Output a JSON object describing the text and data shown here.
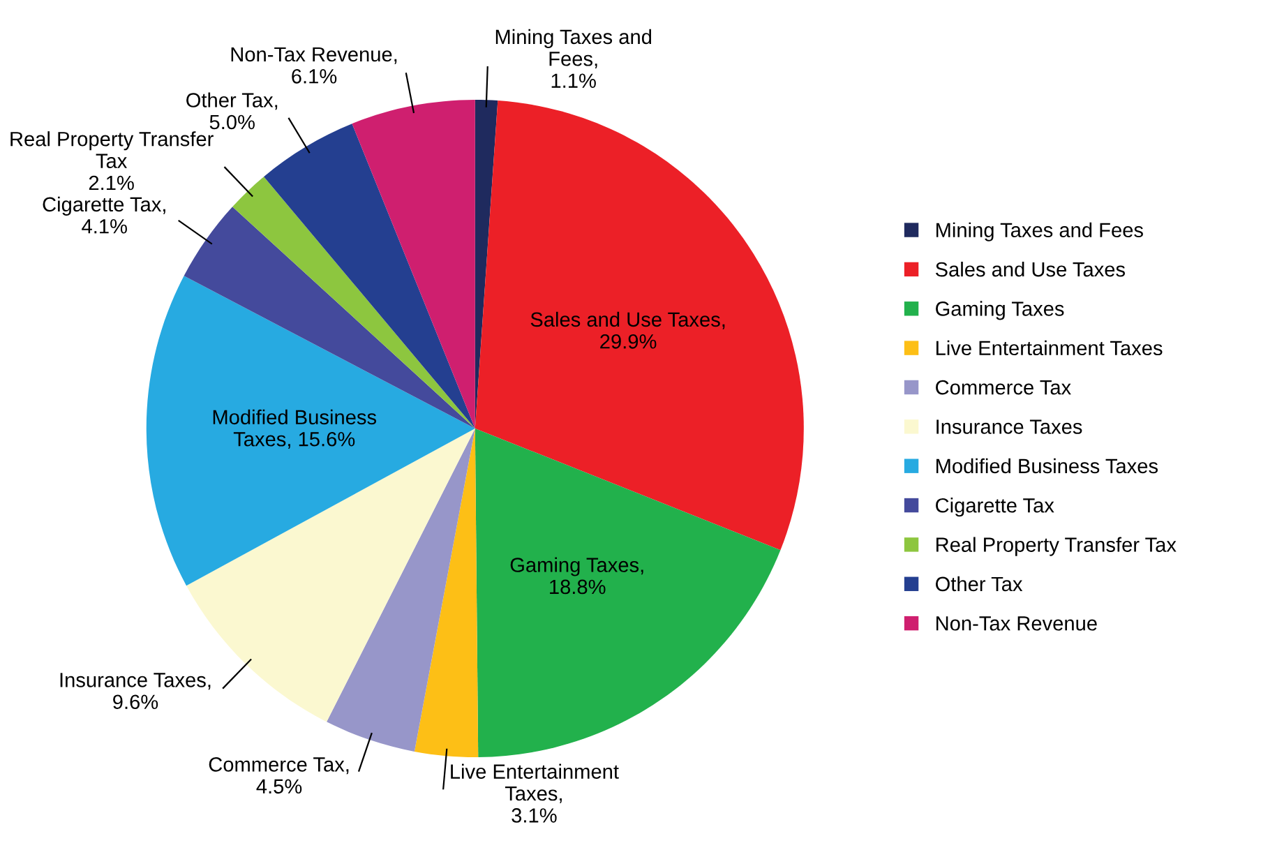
{
  "chart_data": {
    "type": "pie",
    "categories": [
      "Mining Taxes and Fees",
      "Sales and Use Taxes",
      "Gaming Taxes",
      "Live Entertainment Taxes",
      "Commerce Tax",
      "Insurance Taxes",
      "Modified Business Taxes",
      "Cigarette Tax",
      "Real Property Transfer Tax",
      "Other Tax",
      "Non-Tax Revenue"
    ],
    "values": [
      1.1,
      29.9,
      18.8,
      3.1,
      4.5,
      9.6,
      15.6,
      4.1,
      2.1,
      5.0,
      6.1
    ],
    "colors": [
      "#1f2a5e",
      "#ec2027",
      "#22b14c",
      "#fdbf16",
      "#9796c9",
      "#fbf8d0",
      "#27aae1",
      "#444a9c",
      "#8dc63f",
      "#243f90",
      "#cf1f6f"
    ],
    "value_labels": [
      "Mining Taxes and\nFees,\n1.1%",
      "Sales and Use Taxes,\n29.9%",
      "Gaming Taxes,\n18.8%",
      "Live Entertainment\nTaxes,\n3.1%",
      "Commerce Tax,\n4.5%",
      "Insurance Taxes,\n9.6%",
      "Modified Business\nTaxes, 15.6%",
      "Cigarette Tax,\n4.1%",
      "Real Property Transfer\nTax\n2.1%",
      "Other Tax,\n5.0%",
      "Non-Tax Revenue,\n6.1%"
    ],
    "legend": "right"
  }
}
